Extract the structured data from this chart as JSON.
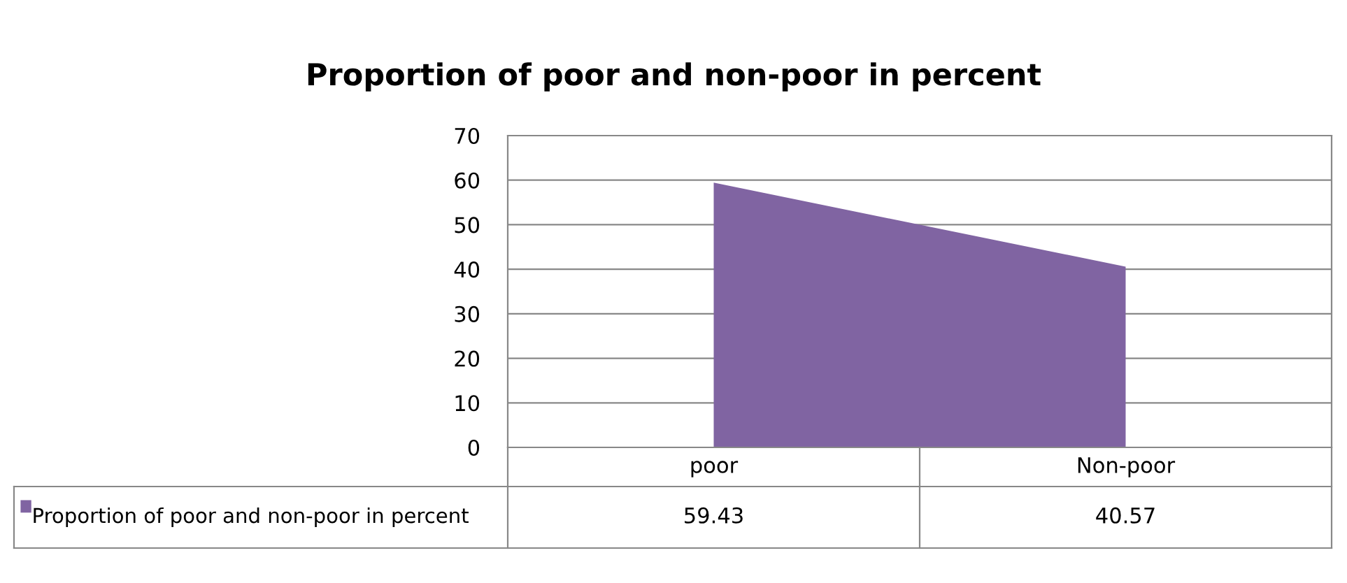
{
  "chart_data": {
    "type": "area",
    "title": "Proportion of poor and non-poor in percent",
    "categories": [
      "poor",
      "Non-poor"
    ],
    "series": [
      {
        "name": "Proportion of poor and non-poor in percent",
        "color": "#8064a2",
        "values": [
          59.43,
          40.57
        ]
      }
    ],
    "ylim": [
      0,
      70
    ],
    "yticks": [
      0,
      10,
      20,
      30,
      40,
      50,
      60,
      70
    ],
    "grid": "y",
    "legend": "bottom",
    "data_labels": true
  }
}
